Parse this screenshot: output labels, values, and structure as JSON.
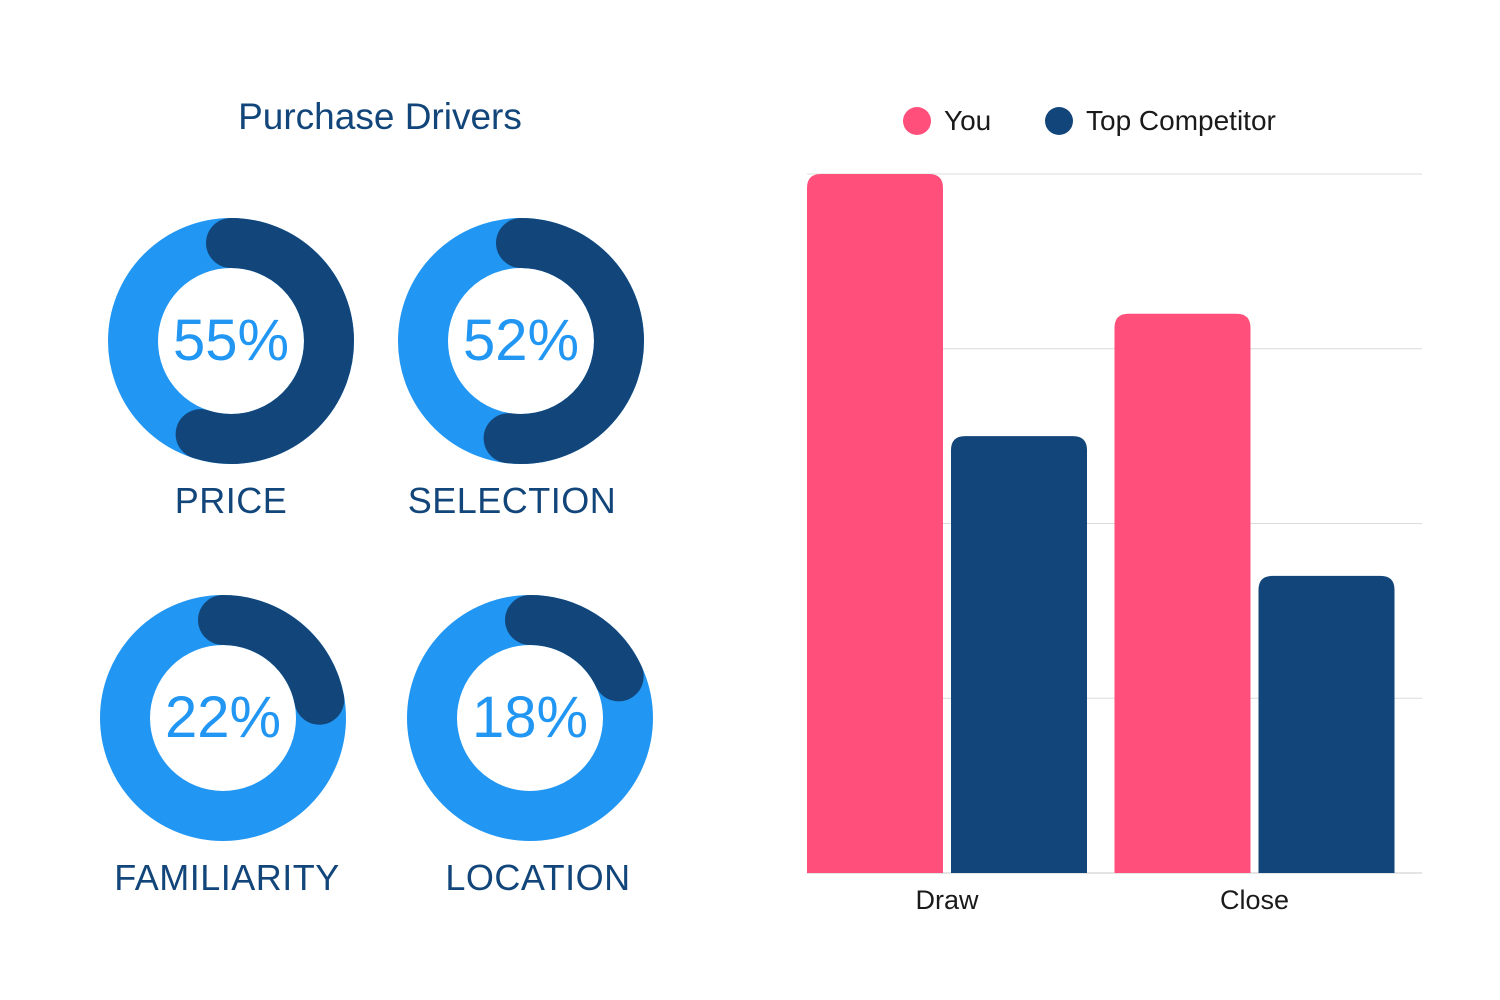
{
  "title": "Purchase Drivers",
  "colors": {
    "ring_light": "#2196f3",
    "ring_dark": "#12467a",
    "you": "#ff4f7a",
    "competitor": "#12467a"
  },
  "drivers": [
    {
      "label": "PRICE",
      "percent_text": "55%",
      "value": 55
    },
    {
      "label": "SELECTION",
      "percent_text": "52%",
      "value": 52
    },
    {
      "label": "FAMILIARITY",
      "percent_text": "22%",
      "value": 22
    },
    {
      "label": "LOCATION",
      "percent_text": "18%",
      "value": 18
    }
  ],
  "chart_data": [
    {
      "type": "pie",
      "title": "Purchase Drivers",
      "slices": [
        {
          "label": "PRICE",
          "value": 55
        },
        {
          "label": "SELECTION",
          "value": 52
        },
        {
          "label": "FAMILIARITY",
          "value": 22
        },
        {
          "label": "LOCATION",
          "value": 18
        }
      ]
    },
    {
      "type": "bar",
      "categories": [
        "Draw",
        "Close"
      ],
      "series": [
        {
          "name": "You",
          "values": [
            100,
            80
          ]
        },
        {
          "name": "Top Competitor",
          "values": [
            62.5,
            42.5
          ]
        }
      ],
      "ylim": [
        0,
        100
      ],
      "grid": true,
      "legend": "top"
    }
  ]
}
